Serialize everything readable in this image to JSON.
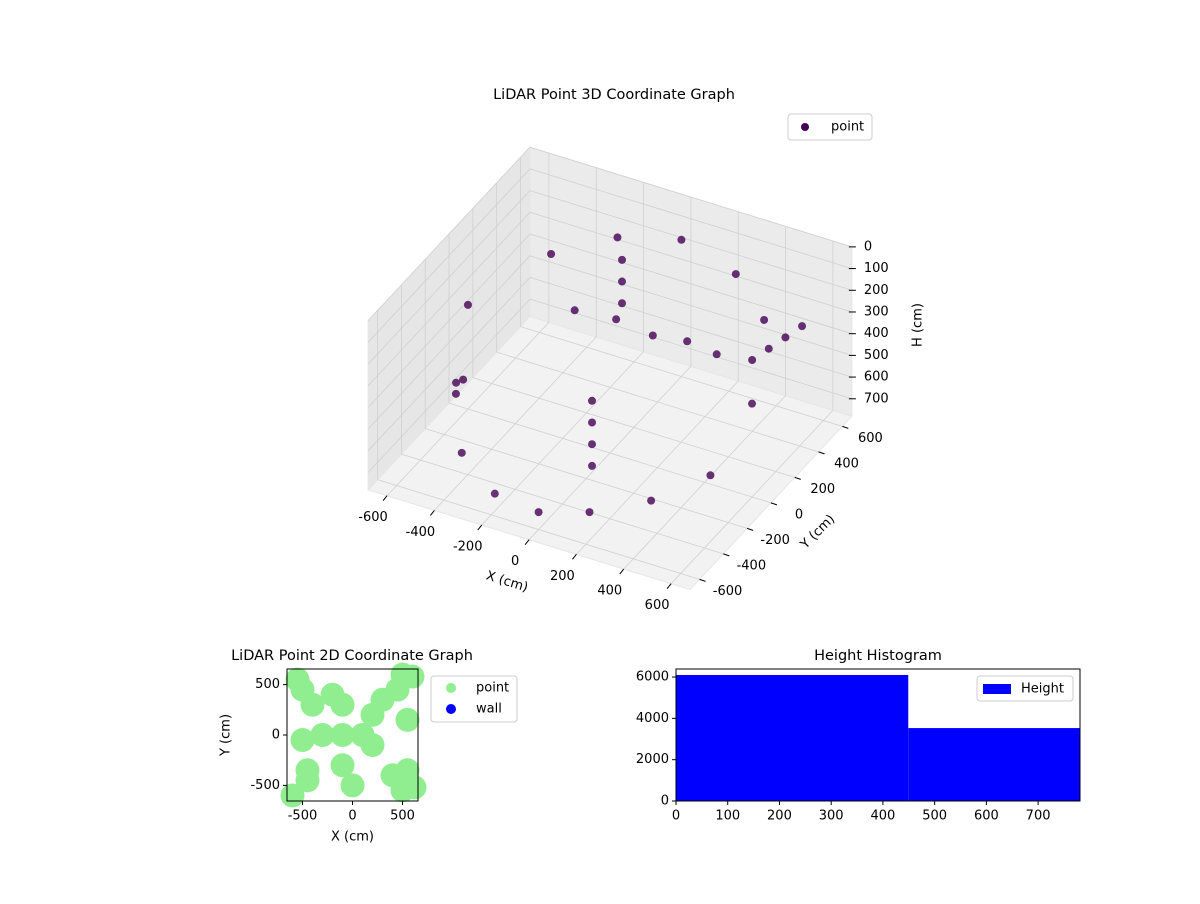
{
  "chart_data": [
    {
      "type": "scatter3d",
      "title": "LiDAR Point 3D Coordinate Graph",
      "x_label": "X (cm)",
      "y_label": "Y (cm)",
      "z_label": "H (cm)",
      "xlim": [
        -680,
        680
      ],
      "ylim": [
        -680,
        680
      ],
      "zlim": [
        0,
        780
      ],
      "z_inverted": true,
      "xticks": [
        -600,
        -400,
        -200,
        0,
        200,
        400,
        600
      ],
      "yticks": [
        -600,
        -400,
        -200,
        0,
        200,
        400,
        600
      ],
      "zticks": [
        0,
        100,
        200,
        300,
        400,
        500,
        600,
        700
      ],
      "legend": "upper right",
      "series": [
        {
          "name": "point",
          "color": "#440154",
          "x": [
            -600,
            -450,
            -250,
            0,
            250,
            450,
            600,
            -600,
            -400,
            -200,
            0,
            200,
            400,
            550,
            -300,
            -150,
            0,
            150,
            300,
            100,
            100,
            100,
            100,
            -100,
            -100,
            -100,
            500,
            520,
            540,
            560,
            -500,
            -520
          ],
          "y": [
            0,
            400,
            560,
            600,
            560,
            400,
            0,
            -100,
            -450,
            -570,
            -600,
            -570,
            -450,
            -250,
            300,
            350,
            360,
            350,
            300,
            -350,
            -350,
            -350,
            -350,
            300,
            300,
            300,
            200,
            300,
            400,
            500,
            -300,
            -200
          ],
          "z": [
            300,
            250,
            200,
            150,
            200,
            250,
            350,
            600,
            650,
            700,
            700,
            650,
            600,
            550,
            400,
            420,
            450,
            420,
            400,
            300,
            400,
            500,
            600,
            100,
            200,
            300,
            300,
            300,
            300,
            300,
            500,
            500
          ]
        }
      ]
    },
    {
      "type": "scatter",
      "title": "LiDAR Point 2D Coordinate Graph",
      "x_label": "X (cm)",
      "y_label": "Y (cm)",
      "xlim": [
        -655,
        655
      ],
      "ylim": [
        -655,
        655
      ],
      "xticks": [
        -500,
        0,
        500
      ],
      "yticks": [
        -500,
        0,
        500
      ],
      "legend": "outside right",
      "series": [
        {
          "name": "point",
          "color": "#90ee90",
          "x": [
            -100,
            -300,
            100,
            -100,
            -100,
            200,
            -400,
            -500,
            -550,
            -450,
            400,
            500,
            550,
            450,
            -500,
            -450,
            550,
            500,
            0,
            -200,
            200,
            600,
            620,
            -600,
            300
          ],
          "y": [
            0,
            0,
            0,
            300,
            -300,
            200,
            300,
            450,
            550,
            -450,
            -400,
            -550,
            -350,
            450,
            -50,
            -350,
            150,
            600,
            -500,
            400,
            -100,
            580,
            -520,
            -600,
            350
          ]
        },
        {
          "name": "wall",
          "color": "#0000ff",
          "x": [],
          "y": []
        }
      ]
    },
    {
      "type": "histogram",
      "title": "Height Histogram",
      "bins": [
        0,
        449,
        781
      ],
      "values": [
        6100,
        3530
      ],
      "xlim": [
        0,
        781
      ],
      "ylim": [
        0,
        6390
      ],
      "xticks": [
        0,
        100,
        200,
        300,
        400,
        500,
        600,
        700
      ],
      "yticks": [
        0,
        2000,
        4000,
        6000
      ],
      "legend": "upper right",
      "series_name": "Height",
      "color": "#0000ff"
    }
  ]
}
